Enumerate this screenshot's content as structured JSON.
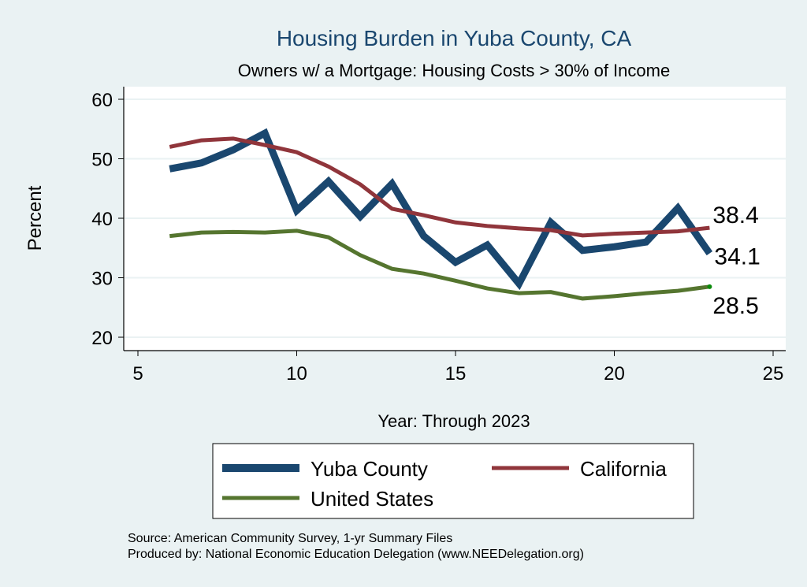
{
  "chart_data": {
    "type": "line",
    "title": "Housing Burden in Yuba County, CA",
    "subtitle": "Owners w/ a Mortgage: Housing Costs > 30% of Income",
    "xlabel": "Year: Through 2023",
    "ylabel": "Percent",
    "xlim": [
      5,
      25
    ],
    "ylim": [
      20,
      60
    ],
    "xticks": [
      "5",
      "10",
      "15",
      "20",
      "25"
    ],
    "yticks": [
      "20",
      "30",
      "40",
      "50",
      "60"
    ],
    "grid": true,
    "legend_position": "bottom",
    "x": [
      6,
      7,
      8,
      9,
      10,
      11,
      12,
      13,
      14,
      15,
      16,
      17,
      18,
      19,
      20,
      21,
      22,
      23
    ],
    "series": [
      {
        "name": "Yuba County",
        "color": "#1a476f",
        "values": [
          48.3,
          49.3,
          51.5,
          54.3,
          41.3,
          46.2,
          40.3,
          45.8,
          37,
          32.6,
          35.5,
          29,
          39.3,
          34.6,
          35.2,
          36,
          41.7,
          34.1
        ],
        "end_label": "34.1"
      },
      {
        "name": "California",
        "color": "#90353b",
        "values": [
          52,
          53.1,
          53.4,
          52.3,
          51.1,
          48.7,
          45.7,
          41.6,
          40.5,
          39.3,
          38.7,
          38.3,
          38,
          37.1,
          37.4,
          37.6,
          37.8,
          38.4
        ],
        "end_label": "38.4"
      },
      {
        "name": "United States",
        "color": "#55752f",
        "values": [
          37,
          37.6,
          37.7,
          37.6,
          37.9,
          36.8,
          33.8,
          31.5,
          30.7,
          29.5,
          28.2,
          27.4,
          27.6,
          26.5,
          26.9,
          27.4,
          27.8,
          28.5
        ],
        "end_label": "28.5"
      }
    ],
    "notes": [
      "Source: American Community Survey, 1-yr Summary Files",
      "Produced by: National Economic Education Delegation (www.NEEDelegation.org)"
    ]
  }
}
